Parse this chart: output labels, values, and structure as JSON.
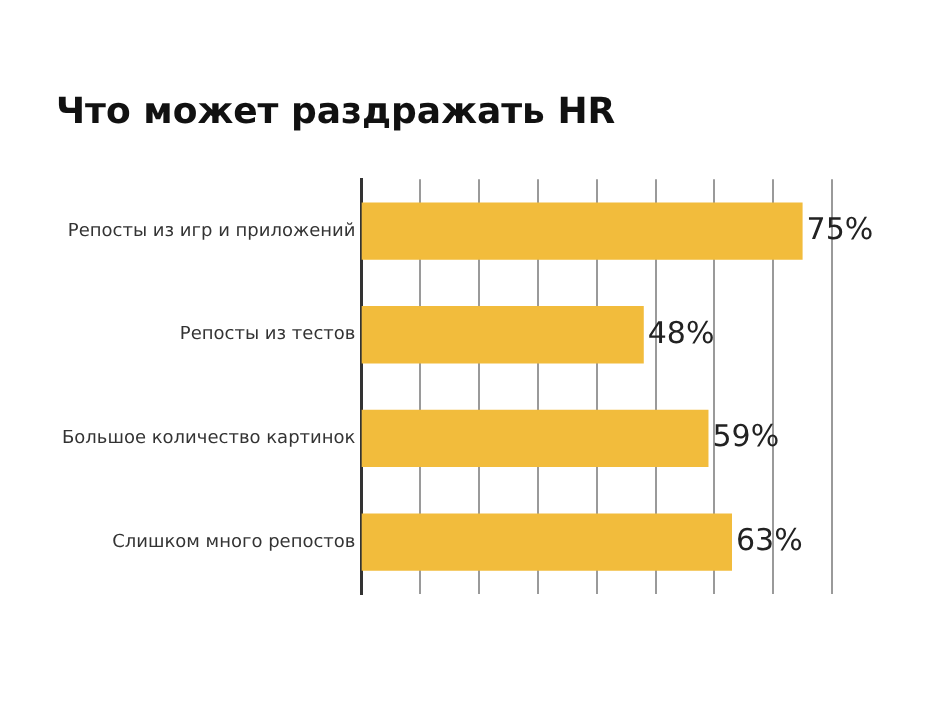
{
  "chart_data": {
    "type": "bar",
    "orientation": "horizontal",
    "title": "Что может раздражать HR",
    "categories": [
      "Репосты из игр и приложений",
      "Репосты из тестов",
      "Большое количество картинок",
      "Слишком много репостов"
    ],
    "values": [
      75,
      48,
      59,
      63
    ],
    "value_labels": [
      "75%",
      "48%",
      "59%",
      "63%"
    ],
    "color": "#f2bc3c",
    "xlim": [
      0,
      80
    ],
    "xticks": [
      {
        "value": 0,
        "label": null
      },
      {
        "value": 10,
        "label": null
      },
      {
        "value": 20,
        "label": null
      },
      {
        "value": 30,
        "label": null
      },
      {
        "value": 40,
        "label": null
      },
      {
        "value": 50,
        "label": null
      },
      {
        "value": 60,
        "label": null
      },
      {
        "value": 70,
        "label": null
      },
      {
        "value": 80,
        "label": null
      }
    ],
    "grid": "x",
    "tick_labels": "y"
  }
}
